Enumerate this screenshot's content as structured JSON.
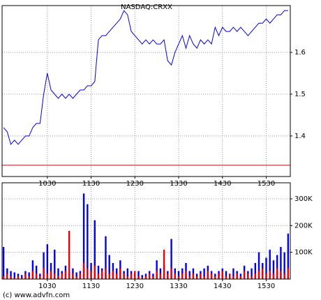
{
  "footer": "(c) www.advfn.com",
  "chart_data": [
    {
      "type": "line",
      "title": "NASDAQ:CRXX",
      "color": "#0000ee",
      "x": [
        570,
        575,
        580,
        585,
        590,
        595,
        600,
        605,
        610,
        615,
        620,
        625,
        630,
        635,
        640,
        645,
        650,
        655,
        660,
        665,
        670,
        675,
        680,
        685,
        690,
        695,
        700,
        705,
        710,
        715,
        720,
        725,
        730,
        735,
        740,
        745,
        750,
        755,
        760,
        765,
        770,
        775,
        780,
        785,
        790,
        795,
        800,
        805,
        810,
        815,
        820,
        825,
        830,
        835,
        840,
        845,
        850,
        855,
        860,
        865,
        870,
        875,
        880,
        885,
        890,
        895,
        900,
        905,
        910,
        915,
        920,
        925,
        930,
        935,
        940,
        945,
        950,
        955,
        960
      ],
      "values": [
        1.42,
        1.41,
        1.38,
        1.39,
        1.38,
        1.39,
        1.4,
        1.4,
        1.42,
        1.43,
        1.43,
        1.5,
        1.55,
        1.51,
        1.5,
        1.49,
        1.5,
        1.49,
        1.5,
        1.49,
        1.5,
        1.51,
        1.51,
        1.52,
        1.52,
        1.53,
        1.63,
        1.64,
        1.64,
        1.65,
        1.66,
        1.67,
        1.68,
        1.7,
        1.69,
        1.65,
        1.64,
        1.63,
        1.62,
        1.63,
        1.62,
        1.63,
        1.62,
        1.62,
        1.63,
        1.58,
        1.57,
        1.6,
        1.62,
        1.64,
        1.61,
        1.64,
        1.62,
        1.61,
        1.63,
        1.62,
        1.63,
        1.62,
        1.66,
        1.64,
        1.66,
        1.65,
        1.65,
        1.66,
        1.65,
        1.66,
        1.65,
        1.64,
        1.65,
        1.66,
        1.67,
        1.67,
        1.68,
        1.67,
        1.68,
        1.69,
        1.69,
        1.7,
        1.7
      ],
      "reference_line": {
        "value": 1.33,
        "color": "#cc0000"
      },
      "xlim": [
        568,
        963
      ],
      "ylim": [
        1.303,
        1.712
      ],
      "xticks": [
        {
          "value": 630,
          "label": "1030"
        },
        {
          "value": 690,
          "label": "1130"
        },
        {
          "value": 750,
          "label": "1230"
        },
        {
          "value": 810,
          "label": "1330"
        },
        {
          "value": 870,
          "label": "1430"
        },
        {
          "value": 930,
          "label": "1530"
        }
      ],
      "yticks": [
        1.4,
        1.5,
        1.6
      ],
      "grid": true
    },
    {
      "type": "bar",
      "x": [
        570,
        575,
        580,
        585,
        590,
        595,
        600,
        605,
        610,
        615,
        620,
        625,
        630,
        635,
        640,
        645,
        650,
        655,
        660,
        665,
        670,
        675,
        680,
        685,
        690,
        695,
        700,
        705,
        710,
        715,
        720,
        725,
        730,
        735,
        740,
        745,
        750,
        755,
        760,
        765,
        770,
        775,
        780,
        785,
        790,
        795,
        800,
        805,
        810,
        815,
        820,
        825,
        830,
        835,
        840,
        845,
        850,
        855,
        860,
        865,
        870,
        875,
        880,
        885,
        890,
        895,
        900,
        905,
        910,
        915,
        920,
        925,
        930,
        935,
        940,
        945,
        950,
        955,
        960
      ],
      "series": [
        {
          "color": "#0000ee",
          "values": [
            120000,
            40000,
            30000,
            25000,
            20000,
            15000,
            30000,
            25000,
            70000,
            50000,
            20000,
            100000,
            130000,
            60000,
            110000,
            40000,
            30000,
            50000,
            30000,
            40000,
            25000,
            30000,
            320000,
            280000,
            60000,
            220000,
            50000,
            40000,
            160000,
            90000,
            60000,
            40000,
            70000,
            30000,
            40000,
            30000,
            20000,
            30000,
            15000,
            20000,
            30000,
            20000,
            70000,
            40000,
            50000,
            30000,
            150000,
            40000,
            30000,
            40000,
            60000,
            30000,
            40000,
            20000,
            30000,
            40000,
            50000,
            30000,
            20000,
            30000,
            40000,
            30000,
            20000,
            40000,
            30000,
            20000,
            50000,
            30000,
            40000,
            60000,
            100000,
            60000,
            80000,
            110000,
            70000,
            90000,
            120000,
            100000,
            170000
          ]
        },
        {
          "color": "#ee0000",
          "values": [
            10000,
            20000,
            10000,
            5000,
            10000,
            5000,
            20000,
            10000,
            30000,
            20000,
            10000,
            40000,
            20000,
            30000,
            20000,
            10000,
            20000,
            30000,
            180000,
            20000,
            10000,
            20000,
            60000,
            40000,
            30000,
            50000,
            20000,
            30000,
            40000,
            20000,
            30000,
            20000,
            40000,
            20000,
            10000,
            20000,
            30000,
            10000,
            5000,
            10000,
            20000,
            10000,
            30000,
            20000,
            110000,
            20000,
            40000,
            20000,
            10000,
            20000,
            30000,
            10000,
            20000,
            10000,
            20000,
            10000,
            30000,
            20000,
            10000,
            20000,
            30000,
            10000,
            20000,
            10000,
            20000,
            10000,
            30000,
            20000,
            10000,
            20000,
            30000,
            40000,
            20000,
            30000,
            20000,
            40000,
            30000,
            20000,
            40000
          ]
        }
      ],
      "xlim": [
        568,
        963
      ],
      "ylim": [
        0,
        360000
      ],
      "xticks": [
        {
          "value": 630,
          "label": "1030"
        },
        {
          "value": 690,
          "label": "1130"
        },
        {
          "value": 750,
          "label": "1230"
        },
        {
          "value": 810,
          "label": "1330"
        },
        {
          "value": 870,
          "label": "1430"
        },
        {
          "value": 930,
          "label": "1530"
        }
      ],
      "yticks": [
        {
          "value": 100000,
          "label": "100K"
        },
        {
          "value": 200000,
          "label": "200K"
        },
        {
          "value": 300000,
          "label": "300K"
        }
      ],
      "grid": true
    }
  ]
}
